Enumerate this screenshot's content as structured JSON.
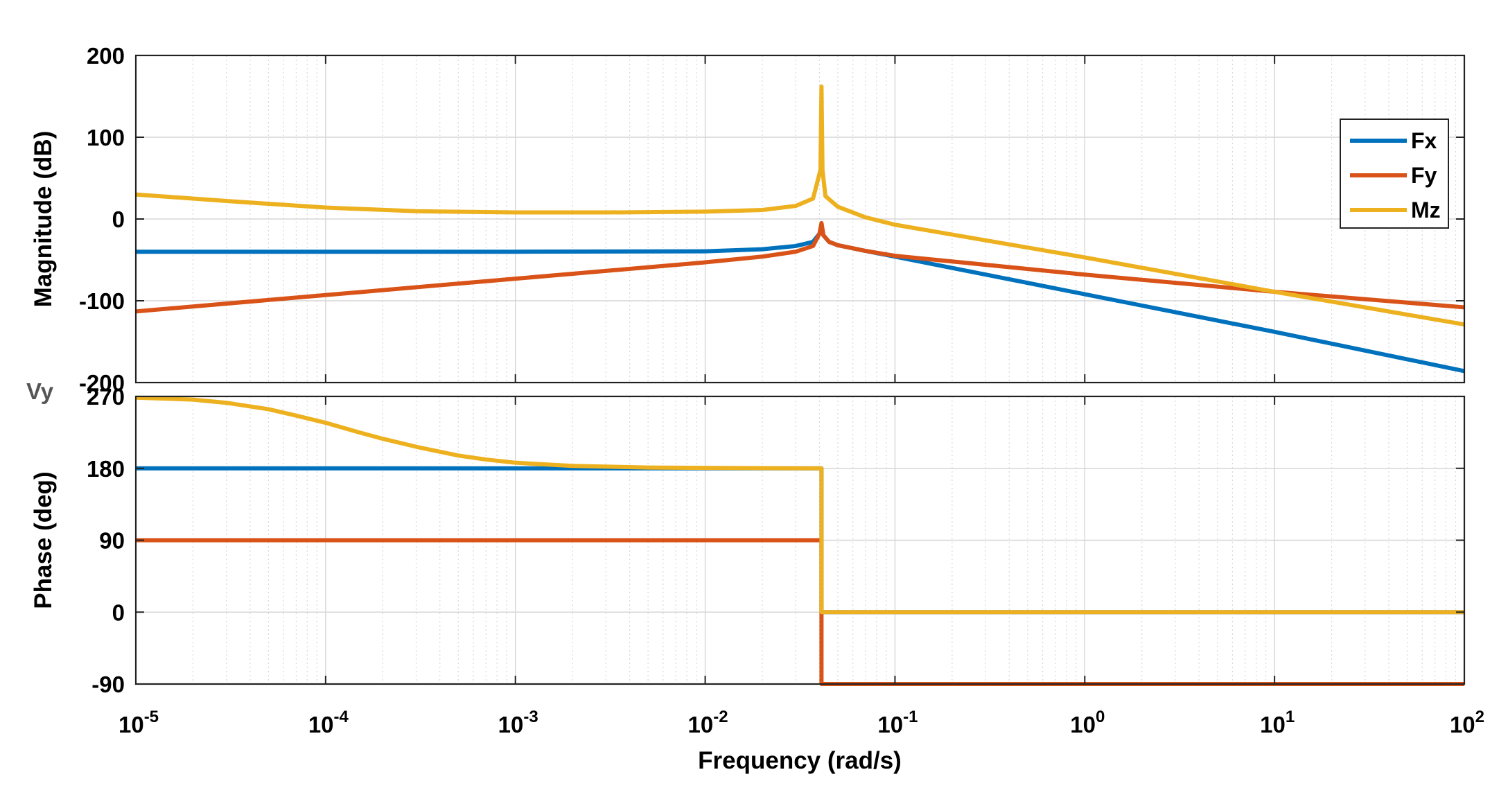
{
  "chart_data": {
    "type": "line",
    "title": "",
    "xlabel": "Frequency  (rad/s)",
    "xscale": "log",
    "xlim": [
      1e-05,
      100
    ],
    "xticks": [
      {
        "base": "10",
        "exp": "-5"
      },
      {
        "base": "10",
        "exp": "-4"
      },
      {
        "base": "10",
        "exp": "-3"
      },
      {
        "base": "10",
        "exp": "-2"
      },
      {
        "base": "10",
        "exp": "-1"
      },
      {
        "base": "10",
        "exp": "0"
      },
      {
        "base": "10",
        "exp": "1"
      },
      {
        "base": "10",
        "exp": "2"
      }
    ],
    "io_label": "Vy",
    "legend": {
      "location": "top-right",
      "entries": [
        "Fx",
        "Fy",
        "Mz"
      ]
    },
    "resonance_frequency": 0.041,
    "magnitude": {
      "ylabel": "Magnitude (dB)",
      "ylim": [
        -200,
        200
      ],
      "ytick_labels": [
        "200",
        "100",
        "0",
        "-100",
        "-200"
      ],
      "grid": true,
      "series": [
        {
          "name": "Fx",
          "color": "#0072BD",
          "points": [
            [
              1e-05,
              -40
            ],
            [
              0.0001,
              -40
            ],
            [
              0.001,
              -40
            ],
            [
              0.01,
              -39.5
            ],
            [
              0.02,
              -37
            ],
            [
              0.03,
              -33
            ],
            [
              0.037,
              -28
            ],
            [
              0.04,
              -18
            ],
            [
              0.041,
              -12
            ],
            [
              0.042,
              -20
            ],
            [
              0.045,
              -28
            ],
            [
              0.05,
              -32
            ],
            [
              0.07,
              -39
            ],
            [
              0.1,
              -46
            ],
            [
              1,
              -92
            ],
            [
              10,
              -138
            ],
            [
              100,
              -186
            ]
          ]
        },
        {
          "name": "Fy",
          "color": "#D95319",
          "points": [
            [
              1e-05,
              -113
            ],
            [
              0.0001,
              -93
            ],
            [
              0.001,
              -73
            ],
            [
              0.01,
              -53
            ],
            [
              0.02,
              -46
            ],
            [
              0.03,
              -40
            ],
            [
              0.037,
              -33
            ],
            [
              0.04,
              -18
            ],
            [
              0.041,
              -5
            ],
            [
              0.042,
              -20
            ],
            [
              0.045,
              -28
            ],
            [
              0.05,
              -32
            ],
            [
              0.07,
              -39
            ],
            [
              0.1,
              -45
            ],
            [
              1,
              -68
            ],
            [
              10,
              -89
            ],
            [
              100,
              -108
            ]
          ]
        },
        {
          "name": "Mz",
          "color": "#EDB120",
          "points": [
            [
              1e-05,
              30
            ],
            [
              3e-05,
              22
            ],
            [
              0.0001,
              14
            ],
            [
              0.0003,
              9.5
            ],
            [
              0.001,
              8
            ],
            [
              0.003,
              8
            ],
            [
              0.01,
              9
            ],
            [
              0.02,
              11
            ],
            [
              0.03,
              16
            ],
            [
              0.037,
              25
            ],
            [
              0.0405,
              60
            ],
            [
              0.041,
              162
            ],
            [
              0.0415,
              60
            ],
            [
              0.043,
              28
            ],
            [
              0.05,
              15
            ],
            [
              0.07,
              2
            ],
            [
              0.1,
              -7
            ],
            [
              1,
              -47
            ],
            [
              10,
              -89
            ],
            [
              100,
              -129
            ]
          ]
        }
      ]
    },
    "phase": {
      "ylabel": "Phase (deg)",
      "ylim": [
        -90,
        270
      ],
      "ytick_labels": [
        "270",
        "180",
        "90",
        "0",
        "-90"
      ],
      "grid": true,
      "series": [
        {
          "name": "Fx",
          "color": "#0072BD",
          "points": [
            [
              1e-05,
              180
            ],
            [
              0.041,
              180
            ],
            [
              0.041,
              0
            ],
            [
              100,
              0
            ]
          ]
        },
        {
          "name": "Fy",
          "color": "#D95319",
          "points": [
            [
              1e-05,
              90
            ],
            [
              0.041,
              90
            ],
            [
              0.041,
              -90
            ],
            [
              100,
              -90
            ]
          ]
        },
        {
          "name": "Mz",
          "color": "#EDB120",
          "points": [
            [
              1e-05,
              268.5
            ],
            [
              2e-05,
              266
            ],
            [
              3e-05,
              262
            ],
            [
              5e-05,
              254
            ],
            [
              7e-05,
              246
            ],
            [
              0.0001,
              237
            ],
            [
              0.00015,
              225
            ],
            [
              0.0002,
              217
            ],
            [
              0.0003,
              207
            ],
            [
              0.0005,
              196
            ],
            [
              0.0007,
              191
            ],
            [
              0.001,
              187
            ],
            [
              0.002,
              183
            ],
            [
              0.005,
              181
            ],
            [
              0.01,
              180.5
            ],
            [
              0.041,
              180
            ],
            [
              0.041,
              0
            ],
            [
              100,
              0
            ]
          ]
        }
      ]
    }
  }
}
